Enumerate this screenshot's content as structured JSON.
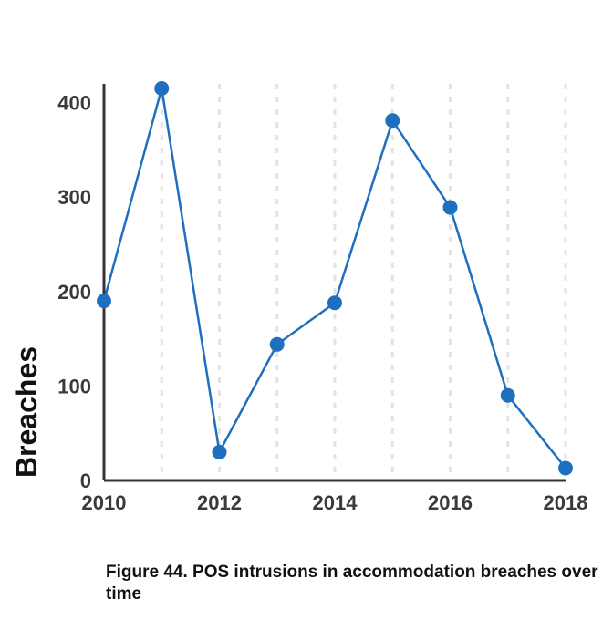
{
  "caption": "Figure 44. POS intrusions in accommodation breaches over time",
  "colors": {
    "series": "#1f6fbf",
    "axis": "#333333",
    "text": "#3a3a3a",
    "grid": "#e3e3e3"
  },
  "chart_data": {
    "type": "line",
    "title": "",
    "xlabel": "",
    "ylabel": "Breaches",
    "x": [
      2010,
      2011,
      2012,
      2013,
      2014,
      2015,
      2016,
      2017,
      2018
    ],
    "series": [
      {
        "values": [
          190,
          415,
          30,
          144,
          188,
          381,
          289,
          90,
          13
        ]
      }
    ],
    "x_ticks": [
      "2010",
      "2012",
      "2014",
      "2016",
      "2018"
    ],
    "y_ticks": [
      "0",
      "100",
      "200",
      "300",
      "400"
    ],
    "xlim": [
      2010,
      2018
    ],
    "ylim": [
      0,
      415
    ],
    "grid": "vertical dotted at each year",
    "legend": "none"
  }
}
